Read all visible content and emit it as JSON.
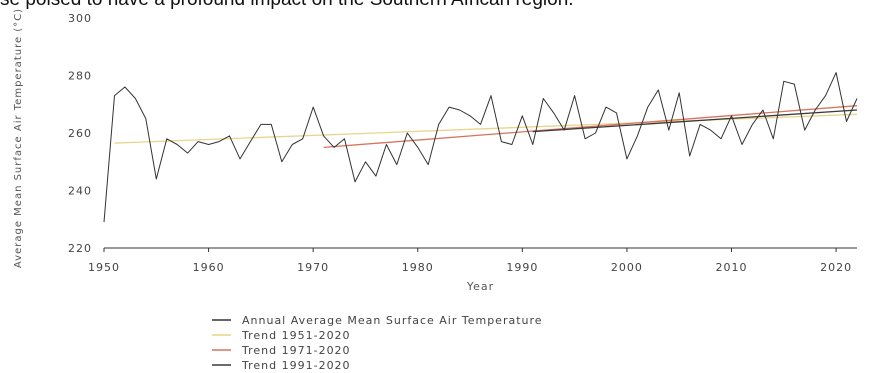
{
  "page": {
    "caption": "se poised to have a profound impact on the Southern African region."
  },
  "chart_data": {
    "type": "line",
    "title": "",
    "xlabel": "Year",
    "ylabel": "Average Mean Surface Air Temperature (°C)",
    "xlim": [
      1950,
      2022
    ],
    "ylim": [
      220,
      300
    ],
    "xticks": [
      1950,
      1960,
      1970,
      1980,
      1990,
      2000,
      2010,
      2020
    ],
    "yticks": [
      220,
      240,
      260,
      280,
      300
    ],
    "legend_position": "bottom",
    "grid": false,
    "series": [
      {
        "name": "Annual Average Mean Surface Air Temperature",
        "color": "#333333",
        "x": [
          1950,
          1951,
          1952,
          1953,
          1954,
          1955,
          1956,
          1957,
          1958,
          1959,
          1960,
          1961,
          1962,
          1963,
          1964,
          1965,
          1966,
          1967,
          1968,
          1969,
          1970,
          1971,
          1972,
          1973,
          1974,
          1975,
          1976,
          1977,
          1978,
          1979,
          1980,
          1981,
          1982,
          1983,
          1984,
          1985,
          1986,
          1987,
          1988,
          1989,
          1990,
          1991,
          1992,
          1993,
          1994,
          1995,
          1996,
          1997,
          1998,
          1999,
          2000,
          2001,
          2002,
          2003,
          2004,
          2005,
          2006,
          2007,
          2008,
          2009,
          2010,
          2011,
          2012,
          2013,
          2014,
          2015,
          2016,
          2017,
          2018,
          2019,
          2020,
          2021,
          2022
        ],
        "values": [
          229,
          273,
          276,
          272,
          265,
          244,
          258,
          256,
          253,
          257,
          256,
          257,
          259,
          251,
          257,
          263,
          263,
          250,
          256,
          258,
          269,
          259,
          255,
          258,
          243,
          250,
          245,
          256,
          249,
          260,
          255,
          249,
          263,
          269,
          268,
          266,
          263,
          273,
          257,
          256,
          266,
          256,
          272,
          267,
          261,
          273,
          258,
          260,
          269,
          267,
          251,
          259,
          269,
          275,
          261,
          274,
          252,
          263,
          261,
          258,
          266,
          256,
          263,
          268,
          258,
          278,
          277,
          261,
          268,
          273,
          281,
          264,
          272
        ]
      },
      {
        "name": "Trend 1951-2020",
        "color": "#e8d48a",
        "x": [
          1951,
          2022
        ],
        "values": [
          256.5,
          266.5
        ]
      },
      {
        "name": "Trend 1971-2020",
        "color": "#d9735e",
        "x": [
          1971,
          2022
        ],
        "values": [
          255,
          269.5
        ]
      },
      {
        "name": "Trend 1991-2020",
        "color": "#3a3a3a",
        "x": [
          1991,
          2022
        ],
        "values": [
          260.5,
          268
        ]
      }
    ]
  }
}
